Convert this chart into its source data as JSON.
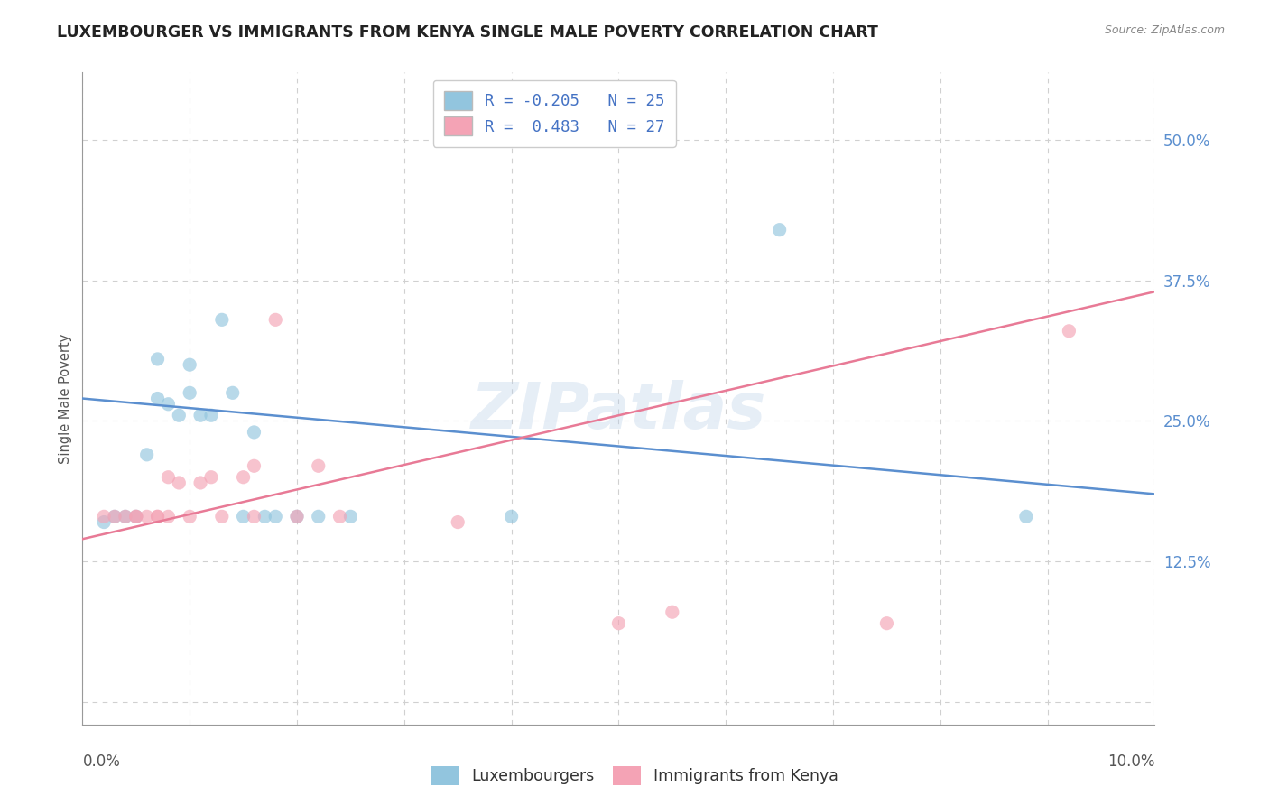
{
  "title": "LUXEMBOURGER VS IMMIGRANTS FROM KENYA SINGLE MALE POVERTY CORRELATION CHART",
  "source": "Source: ZipAtlas.com",
  "ylabel": "Single Male Poverty",
  "xlim": [
    0.0,
    0.1
  ],
  "ylim": [
    -0.02,
    0.56
  ],
  "yticks": [
    0.0,
    0.125,
    0.25,
    0.375,
    0.5
  ],
  "ytick_labels": [
    "",
    "12.5%",
    "25.0%",
    "37.5%",
    "50.0%"
  ],
  "watermark_text": "ZIPatlas",
  "legend_line1": "R = -0.205   N = 25",
  "legend_line2": "R =  0.483   N = 27",
  "color_blue": "#92c5de",
  "color_pink": "#f4a3b5",
  "color_blue_line": "#5b8fcf",
  "color_pink_line": "#e87a96",
  "color_ytick": "#5b8fcf",
  "blue_scatter_x": [
    0.002,
    0.003,
    0.004,
    0.005,
    0.006,
    0.007,
    0.007,
    0.008,
    0.009,
    0.01,
    0.01,
    0.011,
    0.012,
    0.013,
    0.014,
    0.015,
    0.016,
    0.017,
    0.018,
    0.02,
    0.022,
    0.025,
    0.04,
    0.065,
    0.088
  ],
  "blue_scatter_y": [
    0.16,
    0.165,
    0.165,
    0.165,
    0.22,
    0.27,
    0.305,
    0.265,
    0.255,
    0.275,
    0.3,
    0.255,
    0.255,
    0.34,
    0.275,
    0.165,
    0.24,
    0.165,
    0.165,
    0.165,
    0.165,
    0.165,
    0.165,
    0.42,
    0.165
  ],
  "pink_scatter_x": [
    0.002,
    0.003,
    0.004,
    0.005,
    0.005,
    0.006,
    0.007,
    0.007,
    0.008,
    0.008,
    0.009,
    0.01,
    0.011,
    0.012,
    0.013,
    0.015,
    0.016,
    0.016,
    0.018,
    0.02,
    0.022,
    0.024,
    0.035,
    0.05,
    0.055,
    0.075,
    0.092
  ],
  "pink_scatter_y": [
    0.165,
    0.165,
    0.165,
    0.165,
    0.165,
    0.165,
    0.165,
    0.165,
    0.165,
    0.2,
    0.195,
    0.165,
    0.195,
    0.2,
    0.165,
    0.2,
    0.21,
    0.165,
    0.34,
    0.165,
    0.21,
    0.165,
    0.16,
    0.07,
    0.08,
    0.07,
    0.33
  ],
  "blue_line_x": [
    0.0,
    0.1
  ],
  "blue_line_y": [
    0.27,
    0.185
  ],
  "pink_line_x": [
    0.0,
    0.1
  ],
  "pink_line_y": [
    0.145,
    0.365
  ],
  "title_fontsize": 12.5,
  "label_fontsize": 10.5,
  "tick_fontsize": 12,
  "legend_fontsize": 12.5,
  "watermark_fontsize": 52,
  "watermark_alpha": 0.35,
  "watermark_color": "#b8cfe8",
  "grid_color": "#d0d0d0",
  "scatter_size": 120,
  "scatter_alpha": 0.65,
  "line_width": 1.8,
  "legend_text_color": "#4472c4",
  "bottom_legend_labels": [
    "Luxembourgers",
    "Immigrants from Kenya"
  ]
}
